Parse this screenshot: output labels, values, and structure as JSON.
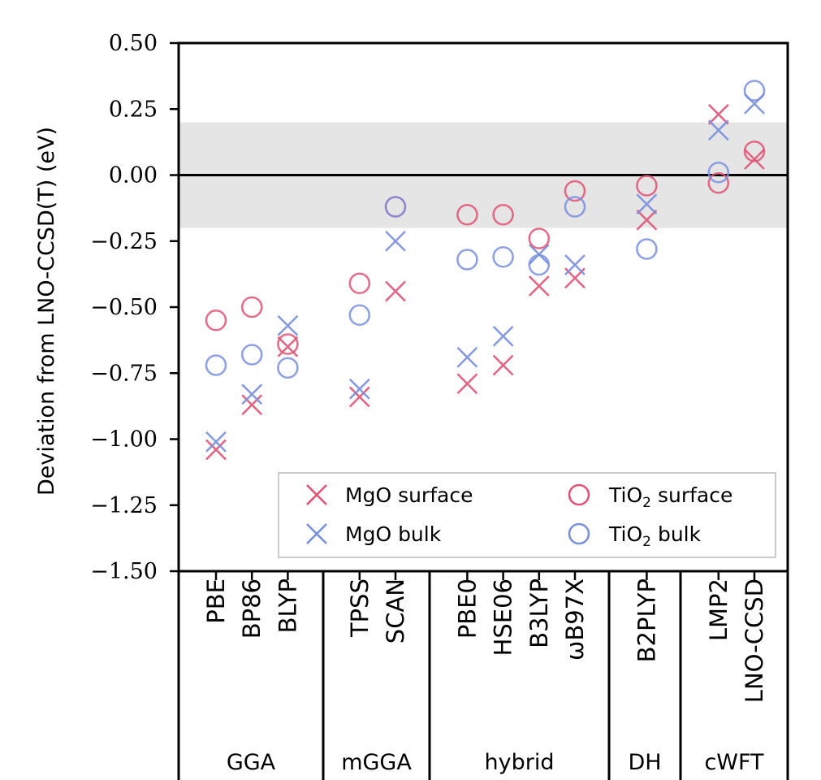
{
  "chart_data": {
    "type": "scatter",
    "ylabel": "Deviation from LNO-CCSD(T) (eV)",
    "ylim": [
      -1.5,
      0.5
    ],
    "yticks": [
      0.5,
      0.25,
      0.0,
      -0.25,
      -0.5,
      -0.75,
      -1.0,
      -1.25,
      -1.5
    ],
    "ytick_labels": [
      "0.50",
      "0.25",
      "0.00",
      "−0.25",
      "−0.50",
      "−0.75",
      "−1.00",
      "−1.25",
      "−1.50"
    ],
    "reference_line": 0.0,
    "shaded_band": [
      -0.2,
      0.2
    ],
    "categories": [
      "PBE",
      "BP86",
      "BLYP",
      "TPSS",
      "SCAN",
      "PBE0",
      "HSE06",
      "B3LYP",
      "ωB97X",
      "B2PLYP",
      "LMP2",
      "LNO-CCSD"
    ],
    "groups": [
      {
        "label": "GGA",
        "members": [
          "PBE",
          "BP86",
          "BLYP"
        ]
      },
      {
        "label": "mGGA",
        "members": [
          "TPSS",
          "SCAN"
        ]
      },
      {
        "label": "hybrid",
        "members": [
          "PBE0",
          "HSE06",
          "B3LYP",
          "ωB97X"
        ]
      },
      {
        "label": "DH",
        "members": [
          "B2PLYP"
        ]
      },
      {
        "label": "cWFT",
        "members": [
          "LMP2",
          "LNO-CCSD"
        ]
      }
    ],
    "series": [
      {
        "name": "MgO surface",
        "marker": "x",
        "color": "#e05577",
        "values": [
          -1.04,
          -0.87,
          -0.65,
          -0.84,
          -0.44,
          -0.79,
          -0.72,
          -0.42,
          -0.39,
          -0.17,
          0.23,
          0.06
        ]
      },
      {
        "name": "MgO bulk",
        "marker": "x",
        "color": "#7a90dd",
        "values": [
          -1.01,
          -0.83,
          -0.57,
          -0.81,
          -0.25,
          -0.69,
          -0.61,
          -0.3,
          -0.34,
          -0.11,
          0.17,
          0.27
        ]
      },
      {
        "name": "TiO₂ surface",
        "marker": "o",
        "color": "#e05577",
        "values": [
          -0.55,
          -0.5,
          -0.64,
          -0.41,
          -0.12,
          -0.15,
          -0.15,
          -0.24,
          -0.06,
          -0.04,
          -0.03,
          0.09
        ]
      },
      {
        "name": "TiO₂ bulk",
        "marker": "o",
        "color": "#7a90dd",
        "values": [
          -0.72,
          -0.68,
          -0.73,
          -0.53,
          -0.12,
          -0.32,
          -0.31,
          -0.34,
          -0.12,
          -0.28,
          0.01,
          0.32
        ]
      }
    ],
    "legend_location": "lower-right",
    "grid": false
  },
  "legend": {
    "mgo_surface": "MgO surface",
    "mgo_bulk": "MgO bulk",
    "tio2_surface_prefix": "TiO",
    "tio2_surface_sub": "2",
    "tio2_surface_suffix": "surface",
    "tio2_bulk_prefix": "TiO",
    "tio2_bulk_sub": "2",
    "tio2_bulk_suffix": "bulk"
  }
}
